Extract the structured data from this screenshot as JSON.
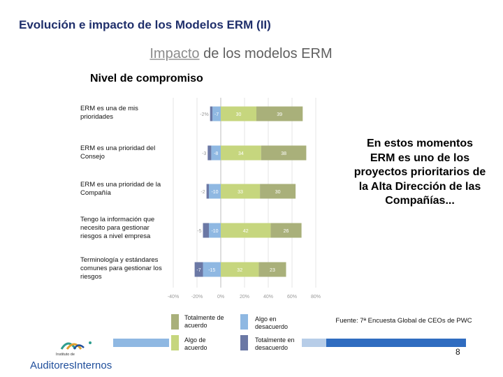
{
  "header": {
    "title": "Evolución e impacto de los Modelos ERM (II)",
    "subtitle_word1": "Impacto",
    "subtitle_rest": " de los modelos ERM",
    "chart_heading": "Nivel de compromiso"
  },
  "callout": "En estos momentos ERM es uno de los proyectos prioritarios de la Alta Dirección de las Compañías...",
  "source": "Fuente: 7ª Encuesta Global de CEOs de PWC",
  "page_number": "8",
  "logo": {
    "line1": "Instituto de",
    "line2": "Auditores",
    "line3": "Internos"
  },
  "colors": {
    "totalmente_de_acuerdo": "#a9b07a",
    "algo_de_acuerdo": "#c6d67e",
    "algo_en_desacuerdo": "#8fb8e2",
    "totalmente_en_desacuerdo": "#6b78a5",
    "brand_blue": "#1f4e9b"
  },
  "chart_data": {
    "type": "bar",
    "orientation": "horizontal-stacked-diverging",
    "title": "Nivel de compromiso",
    "categories": [
      "ERM es una de mis prioridades",
      "ERM es una prioridad del Consejo",
      "ERM es una prioridad de la Compañía",
      "Tengo la información que necesito para gestionar riesgos a nivel empresa",
      "Terminología y estándares comunes para gestionar los riesgos"
    ],
    "series": [
      {
        "name": "Totalmente en desacuerdo",
        "values": [
          -2,
          -3,
          -2,
          -5,
          -7
        ],
        "labels": [
          "-2%",
          "-3",
          "-2",
          "-5",
          "-7"
        ]
      },
      {
        "name": "Algo en desacuerdo",
        "values": [
          -7,
          -8,
          -10,
          -10,
          -15
        ],
        "labels": [
          "-7",
          "-8",
          "-10",
          "-10",
          "-15"
        ]
      },
      {
        "name": "Algo de acuerdo",
        "values": [
          30,
          34,
          33,
          42,
          32
        ],
        "labels": [
          "30",
          "34",
          "33",
          "42",
          "32"
        ]
      },
      {
        "name": "Totalmente de acuerdo",
        "values": [
          39,
          38,
          30,
          26,
          23
        ],
        "labels": [
          "39",
          "38",
          "30",
          "26",
          "23"
        ]
      }
    ],
    "xlim": [
      -40,
      80
    ],
    "xticks": [
      "-40%",
      "-20%",
      "0%",
      "20%",
      "40%",
      "60%",
      "80%"
    ],
    "grid": true,
    "legend": [
      {
        "label": "Totalmente de acuerdo",
        "series": "Totalmente de acuerdo"
      },
      {
        "label": "Algo en desacuerdo",
        "series": "Algo en desacuerdo"
      },
      {
        "label": "Algo de acuerdo",
        "series": "Algo de acuerdo"
      },
      {
        "label": "Totalmente en desacuerdo",
        "series": "Totalmente en desacuerdo"
      }
    ]
  }
}
